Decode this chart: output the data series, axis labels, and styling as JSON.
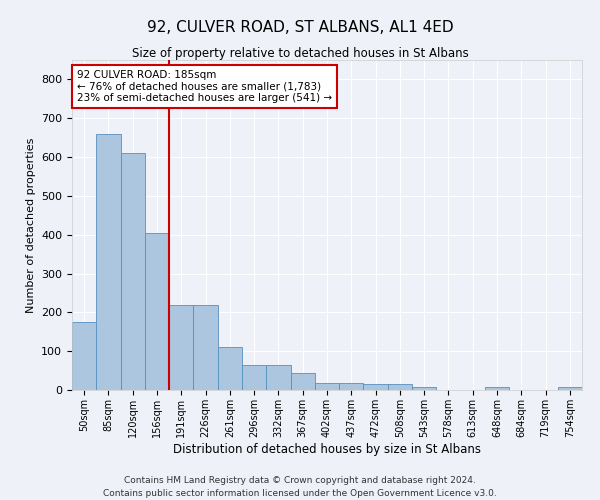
{
  "title": "92, CULVER ROAD, ST ALBANS, AL1 4ED",
  "subtitle": "Size of property relative to detached houses in St Albans",
  "xlabel": "Distribution of detached houses by size in St Albans",
  "ylabel": "Number of detached properties",
  "categories": [
    "50sqm",
    "85sqm",
    "120sqm",
    "156sqm",
    "191sqm",
    "226sqm",
    "261sqm",
    "296sqm",
    "332sqm",
    "367sqm",
    "402sqm",
    "437sqm",
    "472sqm",
    "508sqm",
    "543sqm",
    "578sqm",
    "613sqm",
    "648sqm",
    "684sqm",
    "719sqm",
    "754sqm"
  ],
  "values": [
    175,
    660,
    610,
    405,
    218,
    218,
    110,
    65,
    65,
    45,
    17,
    17,
    15,
    15,
    8,
    0,
    0,
    8,
    0,
    0,
    8
  ],
  "bar_color": "#adc6e0",
  "bar_edge_color": "#5590c0",
  "vline_x": 3.5,
  "vline_color": "#cc0000",
  "annotation_text": "92 CULVER ROAD: 185sqm\n← 76% of detached houses are smaller (1,783)\n23% of semi-detached houses are larger (541) →",
  "annotation_box_color": "#ffffff",
  "annotation_box_edge": "#cc0000",
  "footer_line1": "Contains HM Land Registry data © Crown copyright and database right 2024.",
  "footer_line2": "Contains public sector information licensed under the Open Government Licence v3.0.",
  "ylim": [
    0,
    850
  ],
  "background_color": "#eef2f8",
  "grid_color": "#ffffff"
}
